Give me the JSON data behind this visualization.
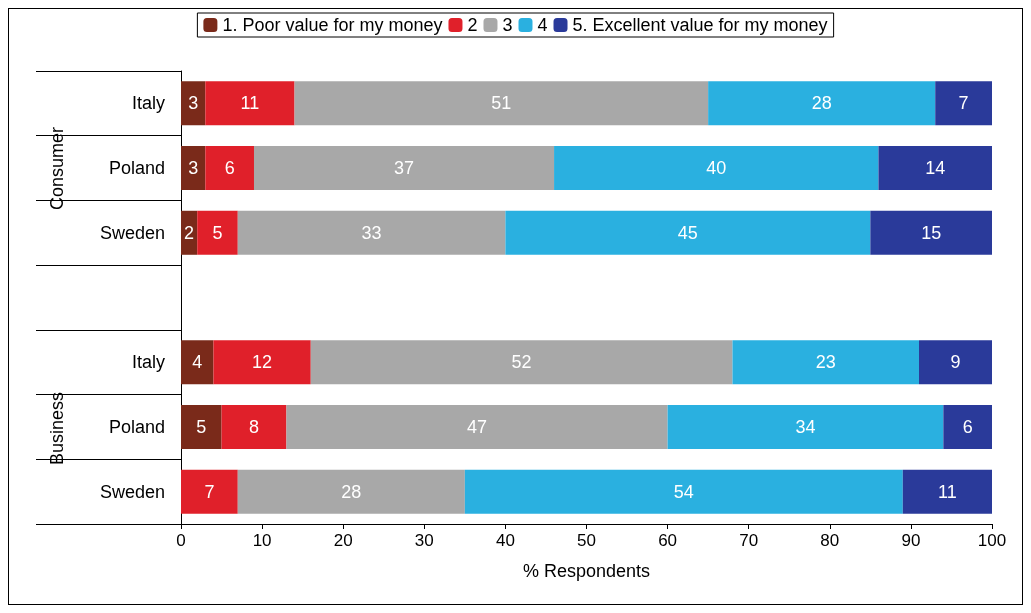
{
  "chart_data": {
    "type": "bar",
    "orientation": "horizontal",
    "stacked": true,
    "xlabel": "% Respondents",
    "categories": [
      "Italy",
      "Poland",
      "Sweden",
      null,
      "Italy",
      "Poland",
      "Sweden"
    ],
    "series": [
      {
        "name": "1. Poor value for my money",
        "color": "#7a2a1a",
        "values": [
          3,
          3,
          2,
          null,
          4,
          5,
          null
        ]
      },
      {
        "name": "2",
        "color": "#e0202a",
        "values": [
          11,
          6,
          5,
          null,
          12,
          8,
          7
        ]
      },
      {
        "name": "3",
        "color": "#a8a8a8",
        "values": [
          51,
          37,
          33,
          null,
          52,
          47,
          28
        ]
      },
      {
        "name": "4",
        "color": "#2ab0e0",
        "values": [
          28,
          40,
          45,
          null,
          23,
          34,
          54
        ]
      },
      {
        "name": "5. Excellent value for my money",
        "color": "#2a3a9a",
        "values": [
          7,
          14,
          15,
          null,
          9,
          6,
          11
        ]
      }
    ],
    "xlim": [
      0,
      100
    ],
    "xticks": [
      0,
      10,
      20,
      30,
      40,
      50,
      60,
      70,
      80,
      90,
      100
    ],
    "data_labels": true,
    "grid": false,
    "legend": "top",
    "annotations": [
      "Consumer",
      "Business"
    ]
  }
}
